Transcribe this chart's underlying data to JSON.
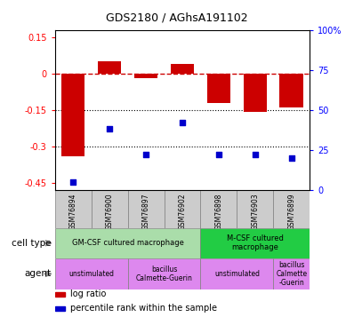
{
  "title": "GDS2180 / AGhsA191102",
  "samples": [
    "GSM76894",
    "GSM76900",
    "GSM76897",
    "GSM76902",
    "GSM76898",
    "GSM76903",
    "GSM76899"
  ],
  "log_ratio": [
    -0.34,
    0.05,
    -0.02,
    0.04,
    -0.12,
    -0.16,
    -0.14
  ],
  "percentile": [
    5,
    38,
    22,
    42,
    22,
    22,
    20
  ],
  "ylim_left": [
    -0.48,
    0.18
  ],
  "ylim_right": [
    0,
    100
  ],
  "yticks_left": [
    0.15,
    0,
    -0.15,
    -0.3,
    -0.45
  ],
  "yticks_right": [
    100,
    75,
    50,
    25,
    0
  ],
  "bar_color": "#cc0000",
  "dot_color": "#0000cc",
  "dashed_color": "#cc0000",
  "grid_color": "#000000",
  "cell_type_groups": [
    {
      "label": "GM-CSF cultured macrophage",
      "span": [
        0,
        4
      ],
      "color": "#aaddaa"
    },
    {
      "label": "M-CSF cultured\nmacrophage",
      "span": [
        4,
        7
      ],
      "color": "#22cc44"
    }
  ],
  "agent_groups": [
    {
      "label": "unstimulated",
      "span": [
        0,
        2
      ],
      "color": "#dd88ee"
    },
    {
      "label": "bacillus\nCalmette-Guerin",
      "span": [
        2,
        4
      ],
      "color": "#dd88ee"
    },
    {
      "label": "unstimulated",
      "span": [
        4,
        6
      ],
      "color": "#dd88ee"
    },
    {
      "label": "bacillus\nCalmette\n-Guerin",
      "span": [
        6,
        7
      ],
      "color": "#dd88ee"
    }
  ],
  "legend_items": [
    {
      "label": "log ratio",
      "color": "#cc0000"
    },
    {
      "label": "percentile rank within the sample",
      "color": "#0000cc"
    }
  ]
}
